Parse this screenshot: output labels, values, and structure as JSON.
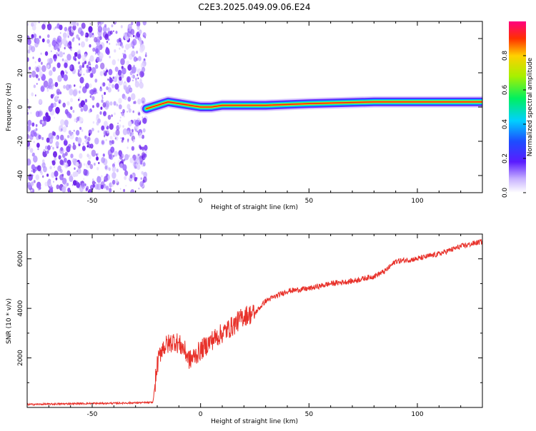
{
  "title": "C2E3.2025.049.09.06.E24",
  "colors": {
    "snr_line": "#e8312a",
    "noise_purple": "#7b2cf0",
    "axes": "#000000"
  },
  "chart_data": [
    {
      "type": "heatmap",
      "xlabel": "Height of straight line (km)",
      "ylabel": "Frequency (Hz)",
      "xlim": [
        -80,
        130
      ],
      "ylim": [
        -50,
        50
      ],
      "x_ticks": [
        -50,
        0,
        50,
        100
      ],
      "y_ticks": [
        -40,
        -20,
        0,
        20,
        40
      ],
      "colorbar": {
        "label": "Normalized spectral amplitude",
        "range": [
          0,
          1
        ],
        "ticks": [
          "0.0",
          "0.2",
          "0.4",
          "0.6",
          "0.8"
        ]
      },
      "noise_region_x": [
        -80,
        -25
      ],
      "ridge": [
        {
          "x": -25,
          "y": -1
        },
        {
          "x": -20,
          "y": 1
        },
        {
          "x": -15,
          "y": 3
        },
        {
          "x": -10,
          "y": 2
        },
        {
          "x": -5,
          "y": 1
        },
        {
          "x": 0,
          "y": 0
        },
        {
          "x": 5,
          "y": 0
        },
        {
          "x": 10,
          "y": 1
        },
        {
          "x": 30,
          "y": 1
        },
        {
          "x": 50,
          "y": 2
        },
        {
          "x": 80,
          "y": 3
        },
        {
          "x": 95,
          "y": 3
        },
        {
          "x": 100,
          "y": 3
        },
        {
          "x": 130,
          "y": 3
        }
      ]
    },
    {
      "type": "line",
      "xlabel": "Height of straight line (km)",
      "ylabel": "SNR (10 * v/v)",
      "xlim": [
        -80,
        130
      ],
      "ylim": [
        0,
        7000
      ],
      "x_ticks": [
        -50,
        0,
        50,
        100
      ],
      "y_ticks": [
        2000,
        4000,
        6000
      ],
      "series": [
        {
          "values": [
            {
              "x": -80,
              "y": 120
            },
            {
              "x": -60,
              "y": 150
            },
            {
              "x": -40,
              "y": 170
            },
            {
              "x": -22,
              "y": 200
            },
            {
              "x": -20,
              "y": 1700
            },
            {
              "x": -18,
              "y": 2400
            },
            {
              "x": -12,
              "y": 2700
            },
            {
              "x": -8,
              "y": 2400
            },
            {
              "x": -5,
              "y": 1900
            },
            {
              "x": 0,
              "y": 2300
            },
            {
              "x": 5,
              "y": 2700
            },
            {
              "x": 10,
              "y": 3000
            },
            {
              "x": 15,
              "y": 3300
            },
            {
              "x": 20,
              "y": 3700
            },
            {
              "x": 25,
              "y": 3800
            },
            {
              "x": 30,
              "y": 4300
            },
            {
              "x": 40,
              "y": 4700
            },
            {
              "x": 50,
              "y": 4800
            },
            {
              "x": 60,
              "y": 5000
            },
            {
              "x": 70,
              "y": 5100
            },
            {
              "x": 80,
              "y": 5300
            },
            {
              "x": 85,
              "y": 5500
            },
            {
              "x": 90,
              "y": 5900
            },
            {
              "x": 100,
              "y": 6000
            },
            {
              "x": 110,
              "y": 6200
            },
            {
              "x": 120,
              "y": 6500
            },
            {
              "x": 130,
              "y": 6700
            }
          ]
        }
      ]
    }
  ]
}
